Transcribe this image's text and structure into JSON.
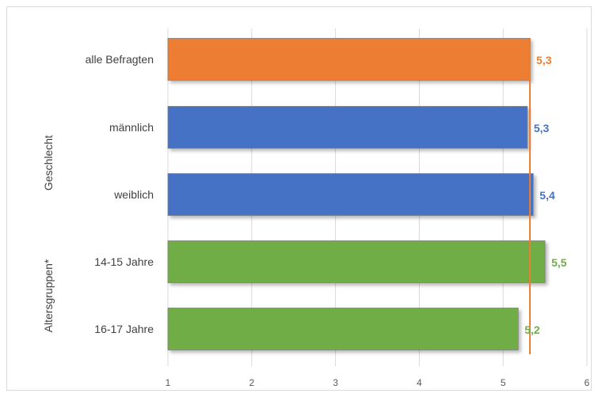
{
  "chart_data": {
    "type": "bar",
    "orientation": "horizontal",
    "categories": [
      "alle Befragten",
      "männlich",
      "weiblich",
      "14-15 Jahre",
      "16-17 Jahre"
    ],
    "values": [
      5.32,
      5.29,
      5.36,
      5.5,
      5.18
    ],
    "data_labels": [
      "5,3",
      "5,3",
      "5,4",
      "5,5",
      "5,2"
    ],
    "bar_colors": [
      "#ED7D31",
      "#4472C4",
      "#4472C4",
      "#70AD47",
      "#70AD47"
    ],
    "groups": [
      {
        "label": "Geschlecht",
        "categories": [
          "männlich",
          "weiblich"
        ]
      },
      {
        "label": "Altersgruppen*",
        "categories": [
          "14-15 Jahre",
          "16-17 Jahre"
        ]
      }
    ],
    "reference_line": {
      "value": 5.32,
      "color": "#ED7D31"
    },
    "xlim": [
      1,
      6
    ],
    "xticks": [
      "1",
      "2",
      "3",
      "4",
      "5",
      "6"
    ],
    "grid": "vertical",
    "title": "",
    "xlabel": "",
    "ylabel": ""
  }
}
